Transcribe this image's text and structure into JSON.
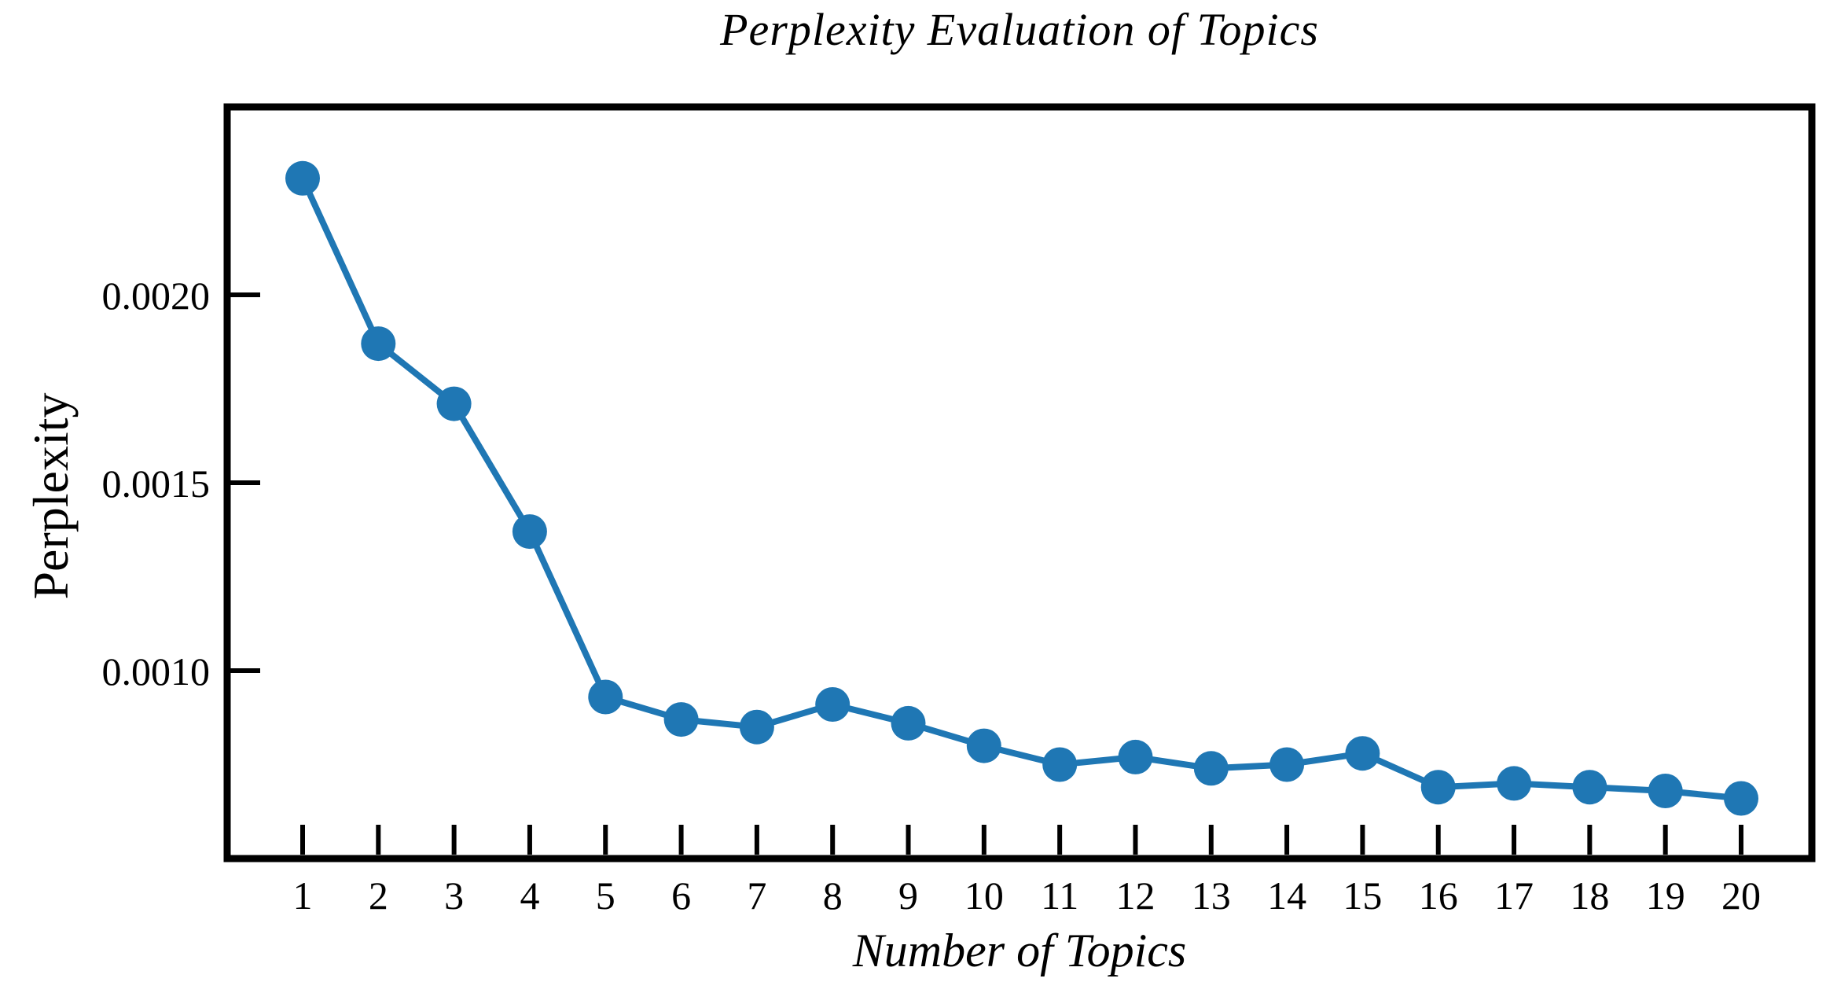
{
  "chart": {
    "title": "Perplexity Evaluation of Topics",
    "xlabel": "Number of Topics",
    "ylabel": "Perplexity"
  },
  "colors": {
    "series": "#1f77b4",
    "axis": "#000000",
    "background": "#ffffff"
  },
  "chart_data": {
    "type": "line",
    "title": "Perplexity Evaluation of Topics",
    "xlabel": "Number of Topics",
    "ylabel": "Perplexity",
    "categories": [
      1,
      2,
      3,
      4,
      5,
      6,
      7,
      8,
      9,
      10,
      11,
      12,
      13,
      14,
      15,
      16,
      17,
      18,
      19,
      20
    ],
    "values": [
      0.00231,
      0.00187,
      0.00171,
      0.00137,
      0.00093,
      0.00087,
      0.00085,
      0.00091,
      0.00086,
      0.0008,
      0.00075,
      0.00077,
      0.00074,
      0.00075,
      0.00078,
      0.00069,
      0.0007,
      0.00069,
      0.00068,
      0.00066
    ],
    "series": [
      {
        "name": "Perplexity",
        "values": [
          0.00231,
          0.00187,
          0.00171,
          0.00137,
          0.00093,
          0.00087,
          0.00085,
          0.00091,
          0.00086,
          0.0008,
          0.00075,
          0.00077,
          0.00074,
          0.00075,
          0.00078,
          0.00069,
          0.0007,
          0.00069,
          0.00068,
          0.00066
        ]
      }
    ],
    "ylim": [
      0.0005,
      0.0025
    ],
    "yticks": [
      0.001,
      0.0015,
      0.002
    ],
    "ytick_labels": [
      "0.0010",
      "0.0015",
      "0.0020"
    ],
    "xtick_labels": [
      "1",
      "2",
      "3",
      "4",
      "5",
      "6",
      "7",
      "8",
      "9",
      "10",
      "11",
      "12",
      "13",
      "14",
      "15",
      "16",
      "17",
      "18",
      "19",
      "20"
    ],
    "grid": false,
    "legend": null,
    "marker": "circle",
    "line_color": "#1f77b4",
    "marker_color": "#1f77b4"
  }
}
